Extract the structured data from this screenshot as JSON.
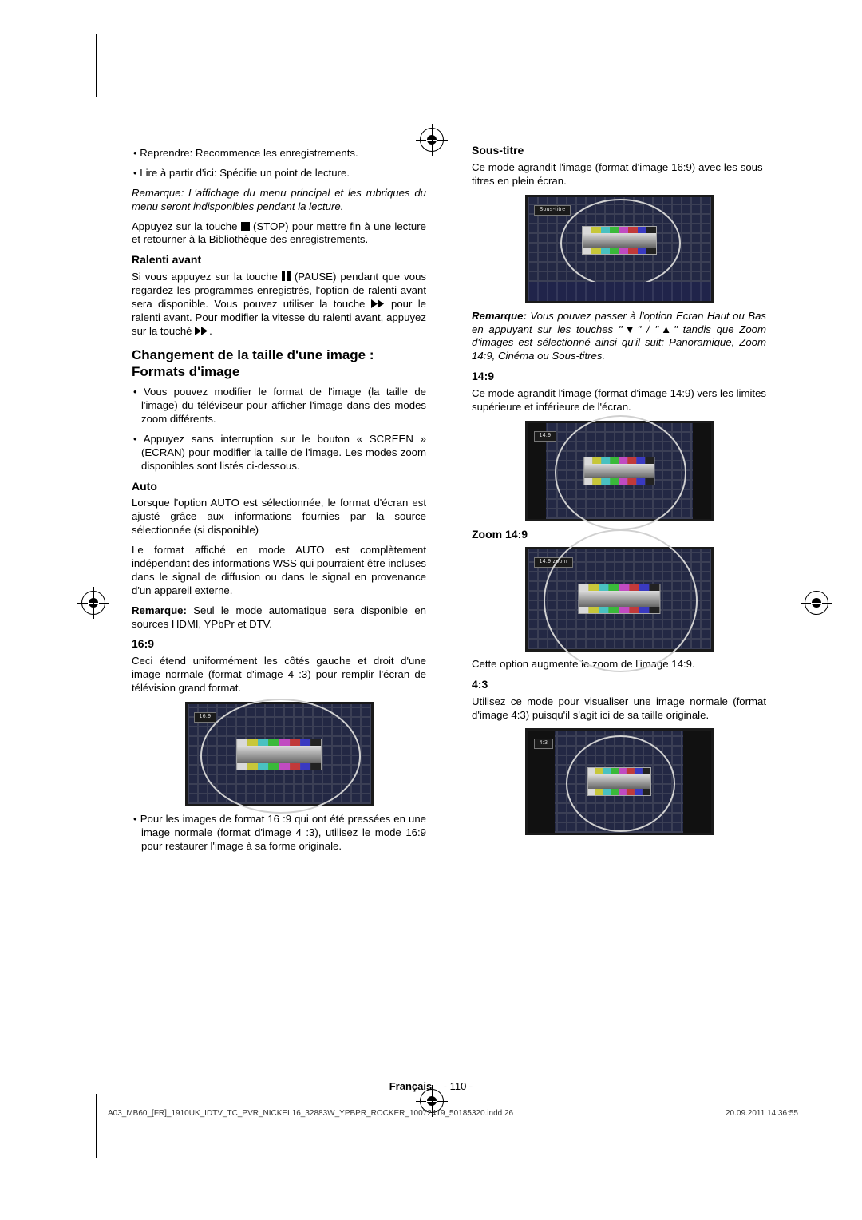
{
  "left": {
    "b1": "Reprendre: Recommence les enregistrements.",
    "b2": "Lire à partir d'ici: Spécifie un point de lecture.",
    "note1": "Remarque: L'affichage du menu principal et les rubriques du menu seront indisponibles pendant la lecture.",
    "p1a": "Appuyez sur la touche ",
    "p1b": " (STOP) pour mettre fin à une lecture et retourner à la Bibliothèque des enregistrements.",
    "h_ralenti": "Ralenti avant",
    "p2a": "Si vous appuyez sur la touche ",
    "p2b": " (PAUSE) pendant que vous regardez les programmes enregistrés, l'option de ralenti avant sera disponible. Vous pouvez utiliser la touche ",
    "p2c": " pour le ralenti avant. Pour modifier la vitesse du ralenti avant, appuyez sur la touché ",
    "p2d": ".",
    "h_change": "Changement de la taille d'une image : Formats d'image",
    "b3": "Vous pouvez modifier le format de l'image (la taille de l'image) du téléviseur pour afficher l'image dans des modes zoom différents.",
    "b4": "Appuyez sans interruption sur le bouton « SCREEN » (ECRAN) pour modifier la taille de l'image. Les modes zoom disponibles sont listés ci-dessous.",
    "h_auto": "Auto",
    "p3": "Lorsque l'option AUTO est sélectionnée, le format d'écran est ajusté grâce aux informations fournies par la source sélectionnée (si disponible)",
    "p4": "Le format affiché en mode AUTO est complètement indépendant des informations WSS qui pourraient être incluses dans le signal de diffusion ou dans le signal en provenance d'un appareil externe.",
    "p5_label": "Remarque:",
    "p5": " Seul le mode automatique sera disponible en sources HDMI, YPbPr et DTV.",
    "h_169": "16:9",
    "p6": "Ceci étend uniformément les côtés gauche et droit d'une image normale (format d'image 4 :3) pour remplir l'écran de télévision grand format.",
    "img1_label": "16:9",
    "b5": "Pour les images de format 16 :9 qui ont été pressées en une image normale (format d'image 4 :3), utilisez le mode 16:9 pour restaurer l'image à sa forme originale."
  },
  "right": {
    "h_sous": "Sous-titre",
    "p1": "Ce mode agrandit l'image (format d'image 16:9) avec les sous-titres en plein écran.",
    "img1_label": "Sous-titre",
    "note_label": "Remarque:",
    "note": " Vous pouvez passer à l'option Ecran Haut ou Bas en appuyant sur les touches \"▼\" / \"▲\" tandis que Zoom d'images est sélectionné ainsi qu'il suit: Panoramique, Zoom 14:9, Cinéma ou Sous-titres.",
    "h_149": "14:9",
    "p2": "Ce mode agrandit l'image (format d'image 14:9) vers les limites supérieure et inférieure de l'écran.",
    "img2_label": "14:9",
    "h_zoom": "Zoom 14:9",
    "img3_label": "14:9 zoom",
    "p3": "Cette option augmente le zoom de l'image 14:9.",
    "h_43": "4:3",
    "p4": "Utilisez ce mode pour visualiser une image normale (format d'image 4:3) puisqu'il s'agit ici de sa taille originale.",
    "img4_label": "4:3"
  },
  "footer": {
    "lang": "Français",
    "page": "- 110 -"
  },
  "printline": {
    "left": "A03_MB60_[FR]_1910UK_IDTV_TC_PVR_NICKEL16_32883W_YPBPR_ROCKER_10072419_50185320.indd   26",
    "right": "20.09.2011   14:36:55"
  },
  "colors": {
    "bars": [
      "#d9d9d9",
      "#c7c73a",
      "#49c1c1",
      "#3ab93a",
      "#c14bc1",
      "#c13a3a",
      "#3a3ac1",
      "#222"
    ]
  },
  "testcard_heights": {
    "sous": 130,
    "r149": 120,
    "zoom": 125,
    "r43": 128,
    "l169": 125
  }
}
